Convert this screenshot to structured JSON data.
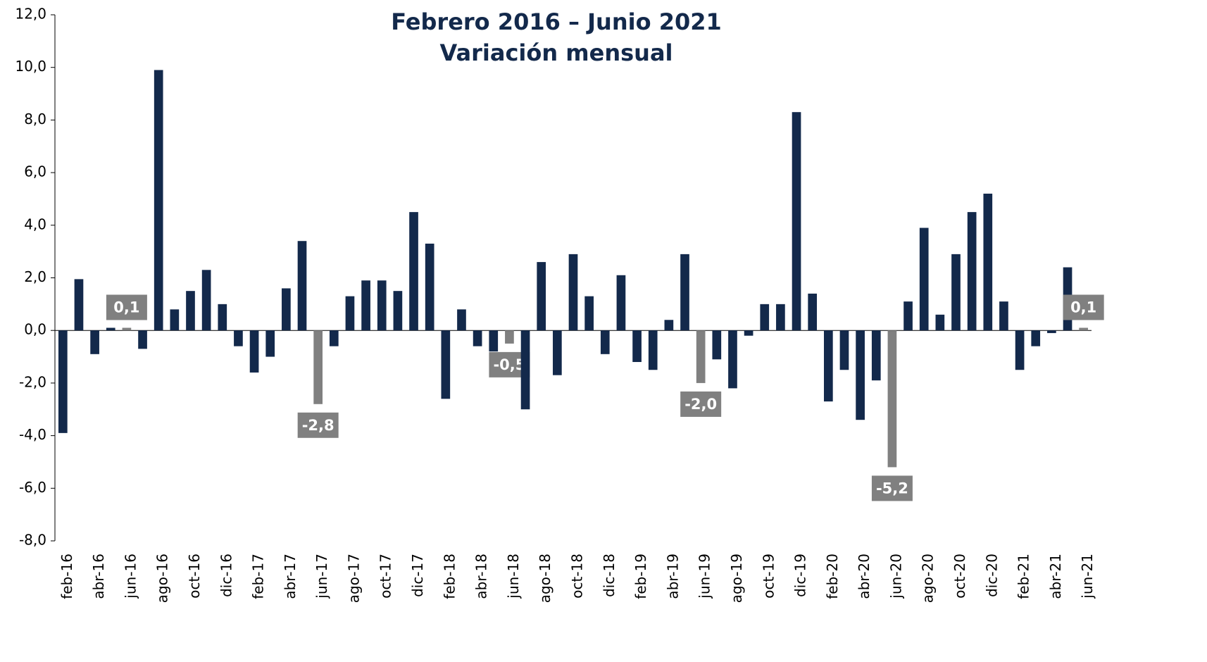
{
  "chart_data": {
    "type": "bar",
    "title": "Febrero 2016 – Junio 2021",
    "subtitle": "Variación mensual",
    "categories": [
      "feb-16",
      null,
      "abr-16",
      null,
      "jun-16",
      null,
      "ago-16",
      null,
      "oct-16",
      null,
      "dic-16",
      null,
      "feb-17",
      null,
      "abr-17",
      null,
      "jun-17",
      null,
      "ago-17",
      null,
      "oct-17",
      null,
      "dic-17",
      null,
      "feb-18",
      null,
      "abr-18",
      null,
      "jun-18",
      null,
      "ago-18",
      null,
      "oct-18",
      null,
      "dic-18",
      null,
      "feb-19",
      null,
      "abr-19",
      null,
      "jun-19",
      null,
      "ago-19",
      null,
      "oct-19",
      null,
      "dic-19",
      null,
      "feb-20",
      null,
      "abr-20",
      null,
      "jun-20",
      null,
      "ago-20",
      null,
      "oct-20",
      null,
      "dic-20",
      null,
      "feb-21",
      null,
      "abr-21",
      null,
      "jun-21"
    ],
    "values": [
      -3.9,
      1.95,
      -0.9,
      0.1,
      0.1,
      -0.7,
      9.9,
      0.8,
      1.5,
      2.3,
      1.0,
      -0.6,
      -1.6,
      -1.0,
      1.6,
      3.4,
      -2.8,
      -0.6,
      1.3,
      1.9,
      1.9,
      1.5,
      4.5,
      3.3,
      -2.6,
      0.8,
      -0.6,
      -0.8,
      -0.5,
      -3.0,
      2.6,
      -1.7,
      2.9,
      1.3,
      -0.9,
      2.1,
      -1.2,
      -1.5,
      0.4,
      2.9,
      -2.0,
      -1.1,
      -2.2,
      -0.2,
      1.0,
      1.0,
      8.3,
      1.4,
      -2.7,
      -1.5,
      -3.4,
      -1.9,
      -5.2,
      1.1,
      3.9,
      0.6,
      2.9,
      4.5,
      5.2,
      1.1,
      -1.5,
      -0.6,
      -0.1,
      2.4,
      0.1
    ],
    "value_labels": [
      null,
      null,
      null,
      null,
      "0,1",
      null,
      null,
      null,
      null,
      null,
      null,
      null,
      null,
      null,
      null,
      null,
      "-2,8",
      null,
      null,
      null,
      null,
      null,
      null,
      null,
      null,
      null,
      null,
      null,
      "-0,5",
      null,
      null,
      null,
      null,
      null,
      null,
      null,
      null,
      null,
      null,
      null,
      "-2,0",
      null,
      null,
      null,
      null,
      null,
      null,
      null,
      null,
      null,
      null,
      null,
      "-5,2",
      null,
      null,
      null,
      null,
      null,
      null,
      null,
      null,
      null,
      null,
      null,
      "0,1"
    ],
    "colors": [
      "#13294b",
      "#13294b",
      "#13294b",
      "#13294b",
      "#808080",
      "#13294b",
      "#13294b",
      "#13294b",
      "#13294b",
      "#13294b",
      "#13294b",
      "#13294b",
      "#13294b",
      "#13294b",
      "#13294b",
      "#13294b",
      "#808080",
      "#13294b",
      "#13294b",
      "#13294b",
      "#13294b",
      "#13294b",
      "#13294b",
      "#13294b",
      "#13294b",
      "#13294b",
      "#13294b",
      "#13294b",
      "#808080",
      "#13294b",
      "#13294b",
      "#13294b",
      "#13294b",
      "#13294b",
      "#13294b",
      "#13294b",
      "#13294b",
      "#13294b",
      "#13294b",
      "#13294b",
      "#808080",
      "#13294b",
      "#13294b",
      "#13294b",
      "#13294b",
      "#13294b",
      "#13294b",
      "#13294b",
      "#13294b",
      "#13294b",
      "#13294b",
      "#13294b",
      "#808080",
      "#13294b",
      "#13294b",
      "#13294b",
      "#13294b",
      "#13294b",
      "#13294b",
      "#13294b",
      "#13294b",
      "#13294b",
      "#13294b",
      "#13294b",
      "#808080"
    ],
    "ylim": [
      -8,
      12
    ],
    "yticks": [
      {
        "value": -8,
        "label": "-8,0"
      },
      {
        "value": -6,
        "label": "-6,0"
      },
      {
        "value": -4,
        "label": "-4,0"
      },
      {
        "value": -2,
        "label": "-2,0"
      },
      {
        "value": 0,
        "label": "0,0"
      },
      {
        "value": 2,
        "label": "2,0"
      },
      {
        "value": 4,
        "label": "4,0"
      },
      {
        "value": 6,
        "label": "6,0"
      },
      {
        "value": 8,
        "label": "8,0"
      },
      {
        "value": 10,
        "label": "10,0"
      },
      {
        "value": 12,
        "label": "12,0"
      }
    ],
    "grid": false
  }
}
